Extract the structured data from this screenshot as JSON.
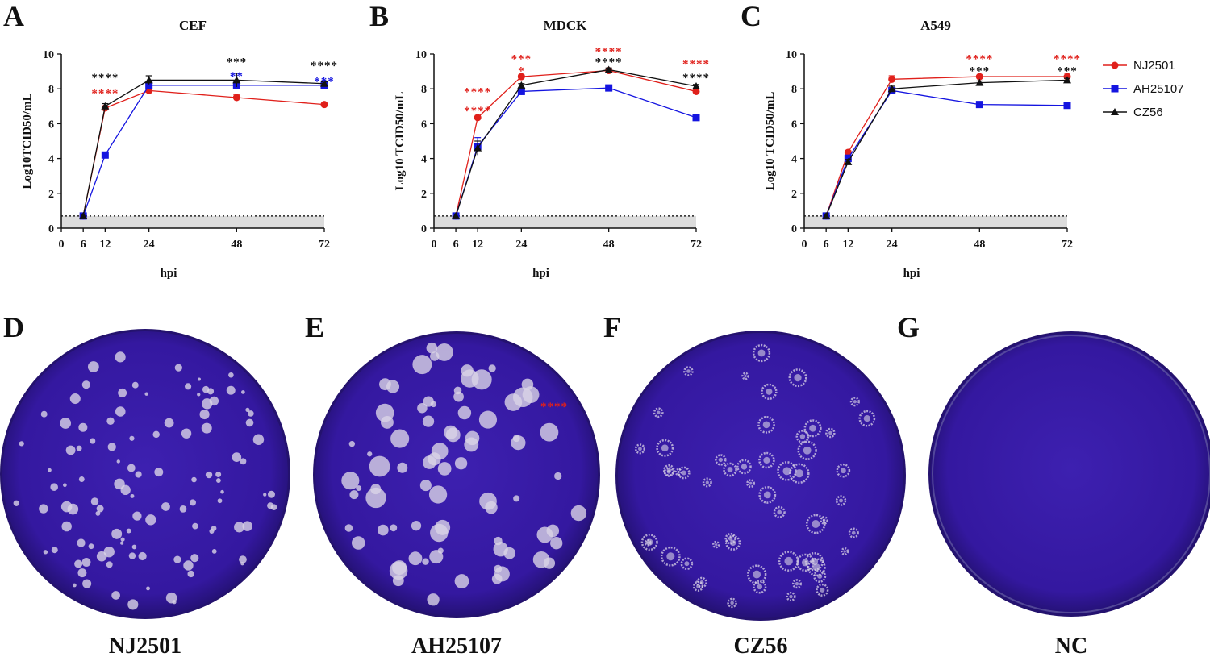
{
  "legend": [
    {
      "label": "NJ2501",
      "color": "#e0201b",
      "marker": "circle"
    },
    {
      "label": "AH25107",
      "color": "#1414e0",
      "marker": "square"
    },
    {
      "label": "CZ56",
      "color": "#111111",
      "marker": "triangle"
    }
  ],
  "chart_data": [
    {
      "panel": "A",
      "type": "line",
      "title": "CEF",
      "xlabel": "hpi",
      "ylabel": "Log10TCID50/mL",
      "xlim": [
        0,
        72
      ],
      "ylim": [
        0,
        10
      ],
      "xticks": [
        0,
        6,
        12,
        24,
        48,
        72
      ],
      "yticks": [
        0,
        2,
        4,
        6,
        8,
        10
      ],
      "detection_limit": 0.7,
      "x": [
        6,
        12,
        24,
        48,
        72
      ],
      "series": [
        {
          "name": "NJ2501",
          "values": [
            0.7,
            6.9,
            7.9,
            7.5,
            7.1
          ],
          "errors": [
            0,
            0.1,
            0.1,
            0.15,
            0.05
          ]
        },
        {
          "name": "AH25107",
          "values": [
            0.7,
            4.2,
            8.2,
            8.2,
            8.2
          ],
          "errors": [
            0,
            0.1,
            0.1,
            0.15,
            0.1
          ]
        },
        {
          "name": "CZ56",
          "values": [
            0.7,
            7.0,
            8.5,
            8.5,
            8.3
          ],
          "errors": [
            0,
            0.15,
            0.25,
            0.4,
            0.1
          ]
        }
      ],
      "annotations": [
        {
          "x": 12,
          "y": 8.7,
          "text": "****",
          "color": "#111111"
        },
        {
          "x": 12,
          "y": 7.8,
          "text": "****",
          "color": "#e0201b"
        },
        {
          "x": 48,
          "y": 9.6,
          "text": "***",
          "color": "#111111"
        },
        {
          "x": 48,
          "y": 8.8,
          "text": "**",
          "color": "#1414e0"
        },
        {
          "x": 72,
          "y": 9.4,
          "text": "****",
          "color": "#111111"
        },
        {
          "x": 72,
          "y": 8.5,
          "text": "***",
          "color": "#1414e0"
        }
      ]
    },
    {
      "panel": "B",
      "type": "line",
      "title": "MDCK",
      "xlabel": "hpi",
      "ylabel": "Log10 TCID50/mL",
      "xlim": [
        0,
        72
      ],
      "ylim": [
        0,
        10
      ],
      "xticks": [
        0,
        6,
        12,
        24,
        48,
        72
      ],
      "yticks": [
        0,
        2,
        4,
        6,
        8,
        10
      ],
      "detection_limit": 0.7,
      "x": [
        6,
        12,
        24,
        48,
        72
      ],
      "series": [
        {
          "name": "NJ2501",
          "values": [
            0.7,
            6.35,
            8.7,
            9.05,
            7.85
          ],
          "errors": [
            0,
            0.05,
            0.1,
            0.1,
            0.15
          ]
        },
        {
          "name": "AH25107",
          "values": [
            0.7,
            4.7,
            7.85,
            8.05,
            6.35
          ],
          "errors": [
            0,
            0.5,
            0.2,
            0.05,
            0.05
          ]
        },
        {
          "name": "CZ56",
          "values": [
            0.7,
            4.6,
            8.2,
            9.1,
            8.15
          ],
          "errors": [
            0,
            0.4,
            0.1,
            0.1,
            0.1
          ]
        }
      ],
      "annotations": [
        {
          "x": 12,
          "y": 7.9,
          "text": "****",
          "color": "#e0201b"
        },
        {
          "x": 12,
          "y": 6.8,
          "text": "****",
          "color": "#e0201b"
        },
        {
          "x": 24,
          "y": 9.8,
          "text": "***",
          "color": "#e0201b"
        },
        {
          "x": 24,
          "y": 9.1,
          "text": "*",
          "color": "#e0201b"
        },
        {
          "x": 48,
          "y": 10.2,
          "text": "****",
          "color": "#e0201b"
        },
        {
          "x": 48,
          "y": 9.6,
          "text": "****",
          "color": "#111111"
        },
        {
          "x": 72,
          "y": 9.5,
          "text": "****",
          "color": "#e0201b"
        },
        {
          "x": 72,
          "y": 8.7,
          "text": "****",
          "color": "#111111"
        }
      ]
    },
    {
      "panel": "C",
      "type": "line",
      "title": "A549",
      "xlabel": "hpi",
      "ylabel": "Log10 TCID50/mL",
      "xlim": [
        0,
        72
      ],
      "ylim": [
        0,
        10
      ],
      "xticks": [
        0,
        6,
        12,
        24,
        48,
        72
      ],
      "yticks": [
        0,
        2,
        4,
        6,
        8,
        10
      ],
      "detection_limit": 0.7,
      "x": [
        6,
        12,
        24,
        48,
        72
      ],
      "series": [
        {
          "name": "NJ2501",
          "values": [
            0.7,
            4.35,
            8.55,
            8.7,
            8.7
          ],
          "errors": [
            0,
            0.1,
            0.2,
            0.05,
            0.2
          ]
        },
        {
          "name": "AH25107",
          "values": [
            0.7,
            4.0,
            7.9,
            7.1,
            7.05
          ],
          "errors": [
            0,
            0.2,
            0.15,
            0.05,
            0.05
          ]
        },
        {
          "name": "CZ56",
          "values": [
            0.7,
            3.8,
            8.0,
            8.35,
            8.5
          ],
          "errors": [
            0,
            0.15,
            0.15,
            0.1,
            0.1
          ]
        }
      ],
      "annotations": [
        {
          "x": 48,
          "y": 9.8,
          "text": "****",
          "color": "#e0201b"
        },
        {
          "x": 48,
          "y": 9.1,
          "text": "***",
          "color": "#111111"
        },
        {
          "x": 72,
          "y": 9.8,
          "text": "****",
          "color": "#e0201b"
        },
        {
          "x": 72,
          "y": 9.1,
          "text": "***",
          "color": "#111111"
        }
      ]
    }
  ],
  "plates": [
    {
      "panel": "D",
      "label": "NJ2501",
      "plaques": "many-small",
      "annotation": ""
    },
    {
      "panel": "E",
      "label": "AH25107",
      "plaques": "many-large",
      "annotation": "****"
    },
    {
      "panel": "F",
      "label": "CZ56",
      "plaques": "medium-ringed",
      "annotation": ""
    },
    {
      "panel": "G",
      "label": "NC",
      "plaques": "none",
      "annotation": ""
    }
  ],
  "colors": {
    "plate_fill": "#3a1ca6",
    "plate_rim": "#24126e",
    "plaque": "#d9d3e6",
    "detection_band": "#dcdcdc"
  }
}
